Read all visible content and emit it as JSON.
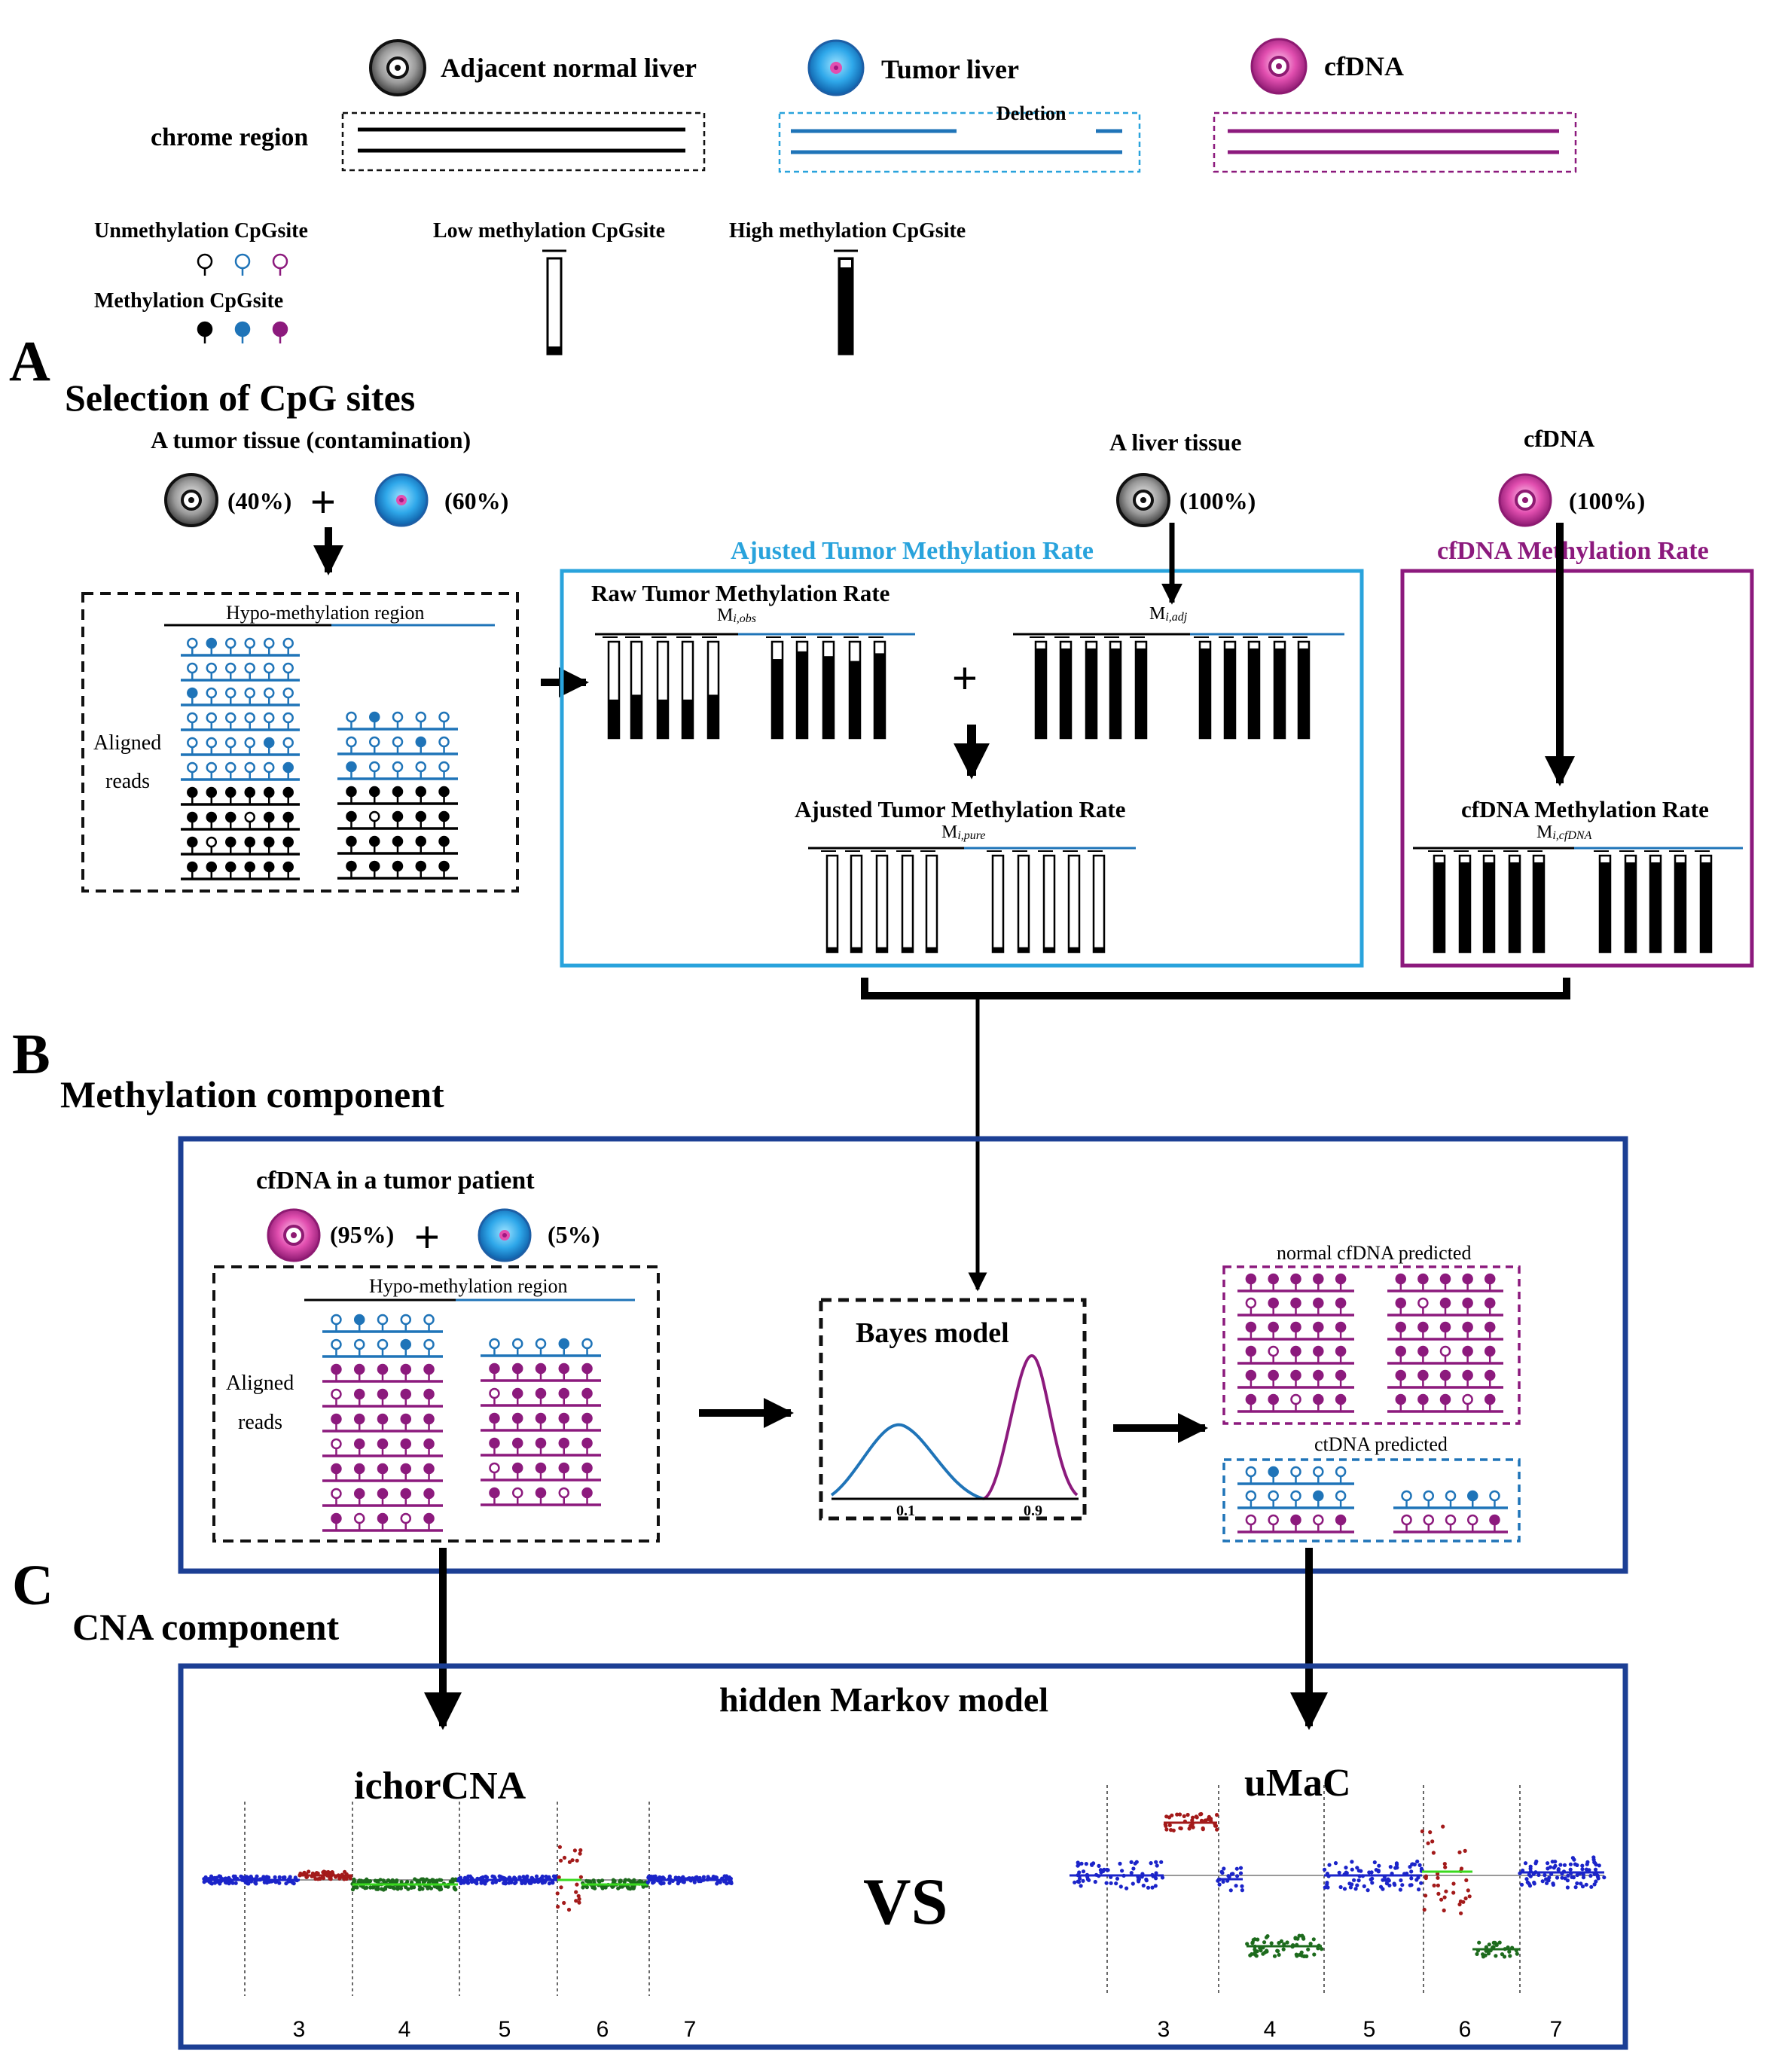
{
  "legend": {
    "normal_label": "Adjacent normal liver",
    "tumor_label": "Tumor liver",
    "cfdna_label": "cfDNA",
    "chrome_region": "chrome region",
    "deletion": "Deletion",
    "unmeth": "Unmethylation CpGsite",
    "meth": "Methylation CpGsite",
    "low_meth": "Low methylation CpGsite",
    "high_meth": "High methylation CpGsite"
  },
  "panelA": {
    "letter": "A",
    "title": "Selection of CpG sites",
    "tumor_tissue": "A tumor tissue (contamination)",
    "pct_normal": "(40%)",
    "pct_tumor": "(60%)",
    "liver_tissue": "A liver tissue",
    "liver_pct": "(100%)",
    "cfdna": "cfDNA",
    "cfdna_pct": "(100%)",
    "hypo_region": "Hypo-methylation region",
    "aligned": "Aligned",
    "reads": "reads",
    "adjusted_title": "Ajusted Tumor Methylation Rate",
    "cfdna_rate_title": "cfDNA Methylation Rate",
    "raw_rate": "Raw Tumor Methylation Rate",
    "m_obs": "M",
    "m_obs_sub": "i,obs",
    "m_adj": "M",
    "m_adj_sub": "i,adj",
    "adjusted_inner": "Ajusted Tumor Methylation Rate",
    "m_pure": "M",
    "m_pure_sub": "i,pure",
    "cfdna_inner": "cfDNA Methylation Rate",
    "m_cfdna": "M",
    "m_cfdna_sub": "i,cfDNA",
    "plus": "+"
  },
  "panelB": {
    "letter": "B",
    "title": "Methylation component",
    "cfdna_patient": "cfDNA in a tumor patient",
    "pct_cfdna": "(95%)",
    "pct_tumor": "(5%)",
    "hypo_region": "Hypo-methylation region",
    "aligned": "Aligned",
    "reads": "reads",
    "bayes": "Bayes model",
    "tick1": "0.1",
    "tick2": "0.9",
    "normal_pred": "normal cfDNA predicted",
    "ctdna_pred": "ctDNA predicted",
    "plus": "+"
  },
  "panelC": {
    "letter": "C",
    "title": "CNA component",
    "hmm": "hidden Markov model",
    "ichor": "ichorCNA",
    "umac": "uMaC",
    "vs": "VS",
    "chroms": [
      "3",
      "4",
      "5",
      "6",
      "7"
    ]
  },
  "colors": {
    "blue": "#1f74b8",
    "light_blue": "#29a3dc",
    "purple": "#8c1a7d",
    "dark_blue": "#1c3f94",
    "black": "#000000"
  }
}
